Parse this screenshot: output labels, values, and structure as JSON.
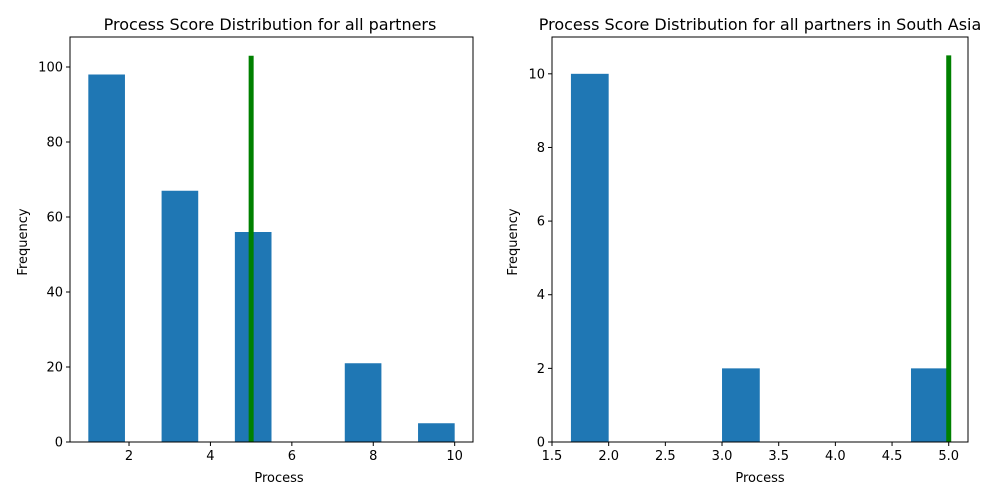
{
  "chart_data": [
    {
      "type": "bar",
      "title": "Process Score Distribution for all partners",
      "xlabel": "Process",
      "ylabel": "Frequency",
      "xlim": [
        0.55,
        10.45
      ],
      "ylim": [
        0,
        108
      ],
      "xticks": [
        2,
        4,
        6,
        8,
        10
      ],
      "yticks": [
        0,
        20,
        40,
        60,
        80,
        100
      ],
      "grid": false,
      "bar_color": "#1f77b4",
      "bins": [
        {
          "x0": 1.0,
          "x1": 1.9,
          "value": 98
        },
        {
          "x0": 1.9,
          "x1": 2.8,
          "value": 0
        },
        {
          "x0": 2.8,
          "x1": 3.7,
          "value": 67
        },
        {
          "x0": 3.7,
          "x1": 4.6,
          "value": 0
        },
        {
          "x0": 4.6,
          "x1": 5.5,
          "value": 56
        },
        {
          "x0": 5.5,
          "x1": 6.4,
          "value": 0
        },
        {
          "x0": 6.4,
          "x1": 7.3,
          "value": 0
        },
        {
          "x0": 7.3,
          "x1": 8.2,
          "value": 21
        },
        {
          "x0": 8.2,
          "x1": 9.1,
          "value": 0
        },
        {
          "x0": 9.1,
          "x1": 10.0,
          "value": 5
        }
      ],
      "reference_line": {
        "x": 5,
        "y_top": 103,
        "color": "#008000"
      }
    },
    {
      "type": "bar",
      "title": "Process Score Distribution for all partners in South Asia",
      "xlabel": "Process",
      "ylabel": "Frequency",
      "xlim": [
        1.5,
        5.17
      ],
      "ylim": [
        0,
        11
      ],
      "xticks": [
        1.5,
        2.0,
        2.5,
        3.0,
        3.5,
        4.0,
        4.5,
        5.0
      ],
      "xtick_labels": [
        "1.5",
        "2.0",
        "2.5",
        "3.0",
        "3.5",
        "4.0",
        "4.5",
        "5.0"
      ],
      "yticks": [
        0,
        2,
        4,
        6,
        8,
        10
      ],
      "grid": false,
      "bar_color": "#1f77b4",
      "bins": [
        {
          "x0": 1.667,
          "x1": 2.0,
          "value": 10
        },
        {
          "x0": 2.0,
          "x1": 2.333,
          "value": 0
        },
        {
          "x0": 2.333,
          "x1": 2.667,
          "value": 0
        },
        {
          "x0": 2.667,
          "x1": 3.0,
          "value": 0
        },
        {
          "x0": 3.0,
          "x1": 3.333,
          "value": 2
        },
        {
          "x0": 3.333,
          "x1": 3.667,
          "value": 0
        },
        {
          "x0": 3.667,
          "x1": 4.0,
          "value": 0
        },
        {
          "x0": 4.0,
          "x1": 4.333,
          "value": 0
        },
        {
          "x0": 4.333,
          "x1": 4.667,
          "value": 0
        },
        {
          "x0": 4.667,
          "x1": 5.0,
          "value": 2
        }
      ],
      "reference_line": {
        "x": 5.0,
        "y_top": 10.5,
        "color": "#008000"
      }
    }
  ]
}
